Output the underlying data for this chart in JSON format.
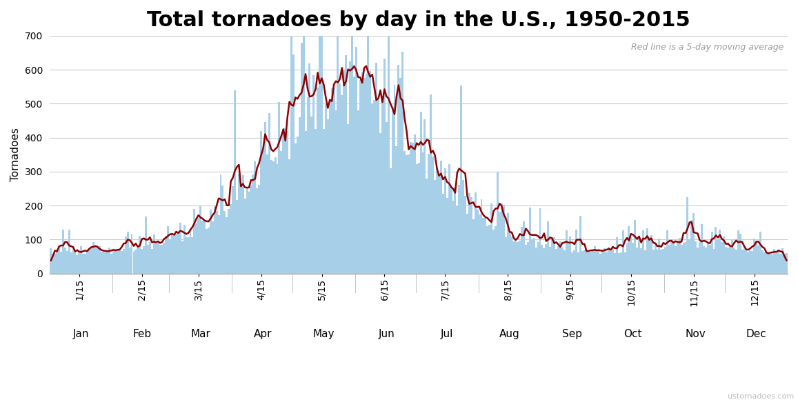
{
  "title": "Total tornadoes by day in the U.S., 1950-2015",
  "ylabel": "Tornadoes",
  "annotation": "Red line is a 5-day moving average",
  "watermark": "ustornadoes.com",
  "bar_color": "#a8cfe8",
  "line_color": "#8b0000",
  "background_color": "#ffffff",
  "grid_color": "#cccccc",
  "ylim": [
    0,
    700
  ],
  "yticks": [
    0,
    100,
    200,
    300,
    400,
    500,
    600,
    700
  ],
  "title_fontsize": 22,
  "ylabel_fontsize": 11,
  "tick_fontsize": 10,
  "annotation_fontsize": 9,
  "watermark_fontsize": 8,
  "month_15s": [
    15,
    46,
    74,
    105,
    135,
    166,
    196,
    227,
    258,
    288,
    319,
    349
  ],
  "month_starts": [
    1,
    32,
    60,
    91,
    121,
    152,
    182,
    213,
    244,
    274,
    305,
    335
  ],
  "month_mids": [
    16,
    46,
    75,
    106,
    136,
    167,
    197,
    228,
    259,
    289,
    320,
    350
  ],
  "month_15_labels": [
    "1/15",
    "2/15",
    "3/15",
    "4/15",
    "5/15",
    "6/15",
    "7/15",
    "8/15",
    "9/15",
    "10/15",
    "11/15",
    "12/15"
  ],
  "month_names": [
    "Jan",
    "Feb",
    "Mar",
    "Apr",
    "May",
    "Jun",
    "Jul",
    "Aug",
    "Sep",
    "Oct",
    "Nov",
    "Dec"
  ]
}
